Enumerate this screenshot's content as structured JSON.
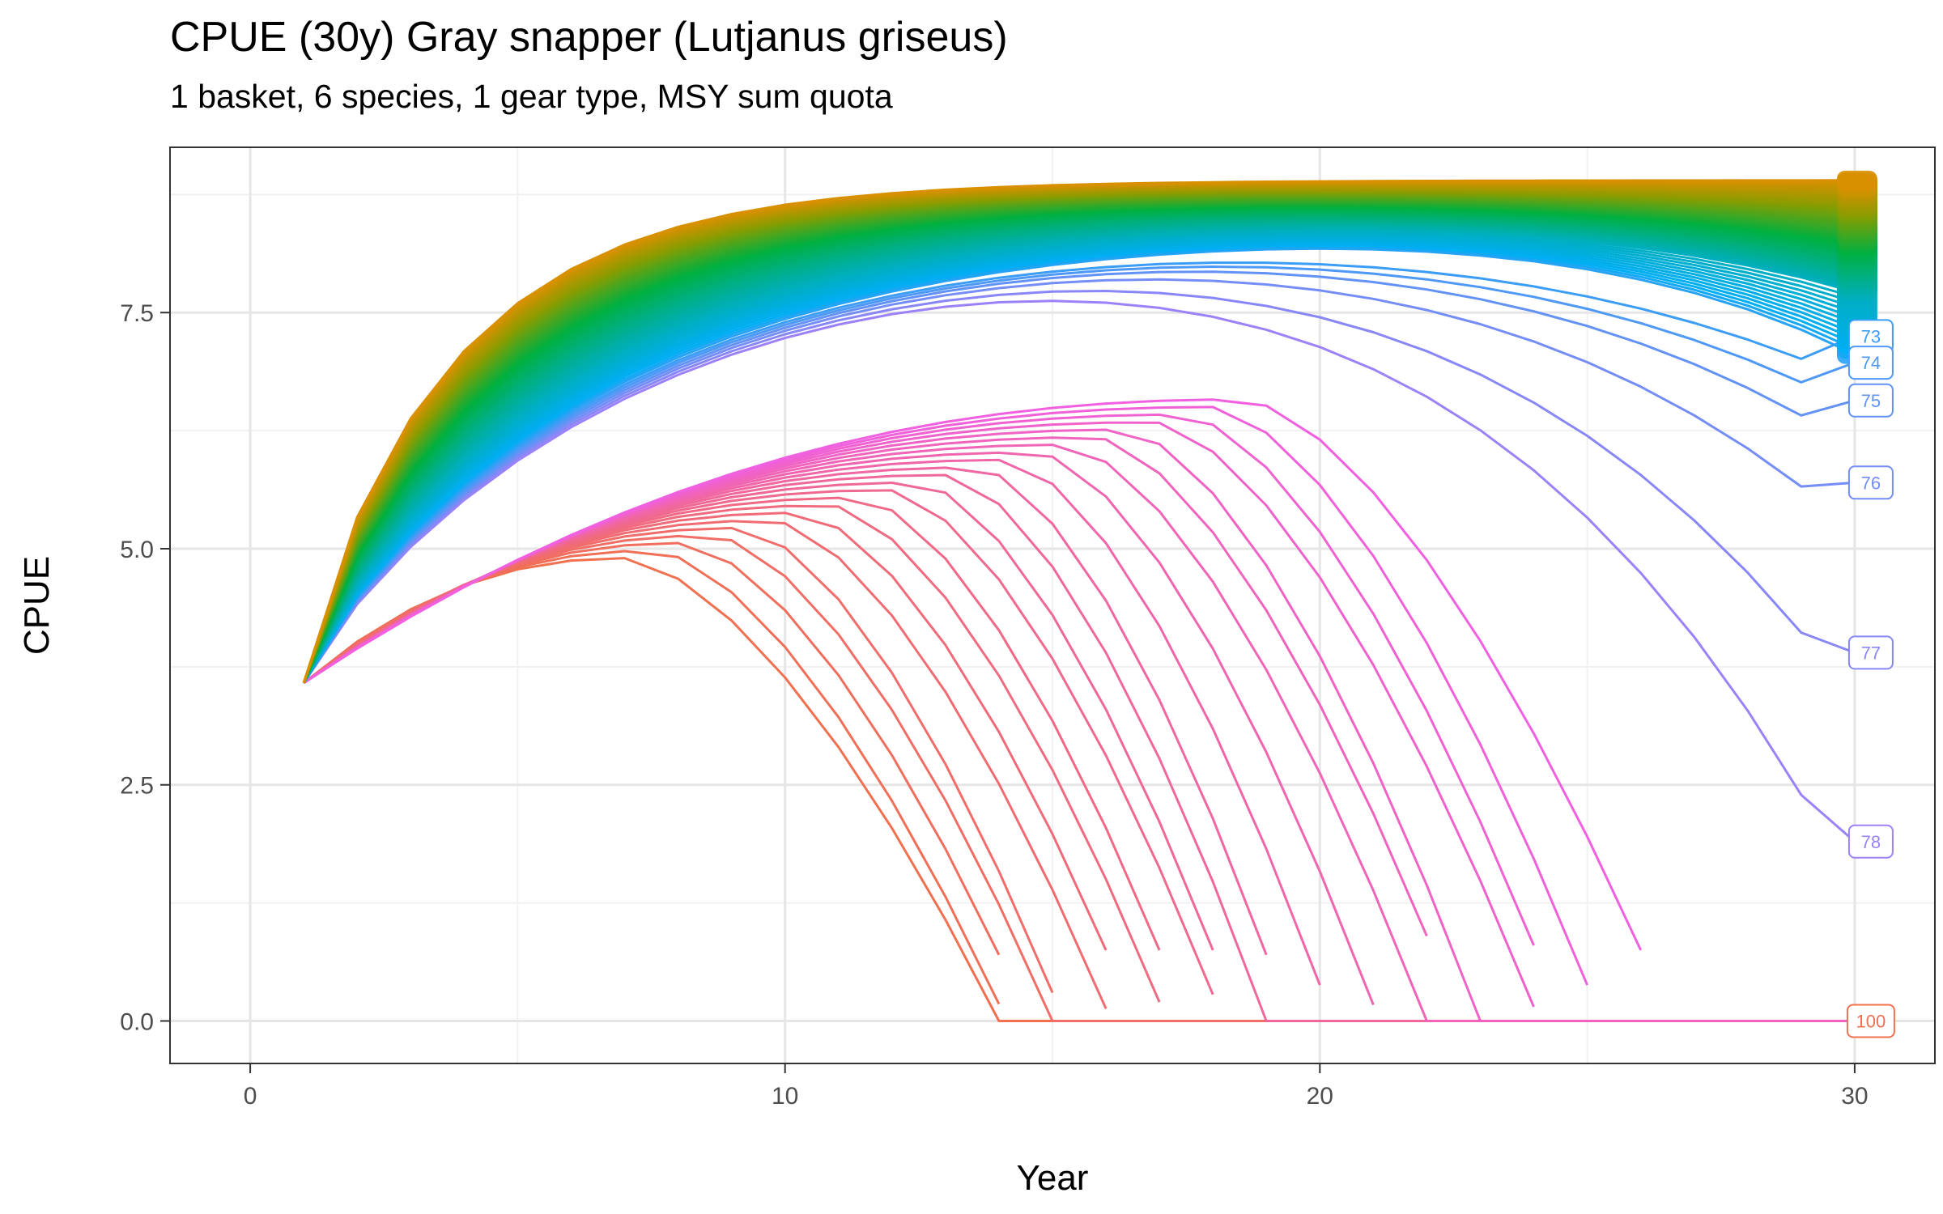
{
  "chart_data": {
    "type": "line",
    "title": "CPUE (30y) Gray snapper (Lutjanus griseus)",
    "subtitle": "1 basket, 6 species, 1 gear type, MSY sum quota",
    "xlabel": "Year",
    "ylabel": "CPUE",
    "xlim": [
      -1.5,
      31.5
    ],
    "ylim": [
      -0.45,
      9.25
    ],
    "x_ticks": [
      0,
      10,
      20,
      30
    ],
    "x_tick_labels": [
      "0",
      "10",
      "20",
      "30"
    ],
    "y_ticks": [
      0.0,
      2.5,
      5.0,
      7.5
    ],
    "y_tick_labels": [
      "0.0",
      "2.5",
      "5.0",
      "7.5"
    ],
    "grid": true,
    "legend": "none",
    "series_count": 100,
    "collapse_series_from": 79,
    "start": {
      "x": 1,
      "y": 3.58
    },
    "end_labels": [
      {
        "label": "73",
        "y": 7.25
      },
      {
        "label": "74",
        "y": 6.97
      },
      {
        "label": "75",
        "y": 6.57
      },
      {
        "label": "76",
        "y": 5.7
      },
      {
        "label": "77",
        "y": 3.9
      },
      {
        "label": "78",
        "y": 1.9
      },
      {
        "label": "100",
        "y": 0.0
      }
    ],
    "collapse_years": [
      14,
      14,
      14,
      15,
      15,
      16,
      16,
      17,
      17,
      18,
      18,
      19,
      19,
      20,
      21,
      22,
      22,
      23,
      24,
      24,
      25,
      26,
      27,
      28,
      29,
      29
    ],
    "collapse_last_values": [
      0.0,
      0.18,
      0.7,
      0.0,
      0.3,
      0.13,
      0.75,
      0.2,
      0.75,
      0.28,
      0.75,
      0.0,
      0.7,
      0.38,
      0.17,
      0.0,
      0.9,
      0.0,
      0.15,
      0.8,
      0.38,
      0.75,
      0.0,
      0.28,
      0.0,
      0.0
    ],
    "colors": {
      "low": "#f07050",
      "magenta": "#f060e0",
      "purple": "#b07cf8",
      "blue": "#00aef4",
      "green": "#00b040",
      "olive": "#8c9c00",
      "orange": "#d99000"
    }
  }
}
